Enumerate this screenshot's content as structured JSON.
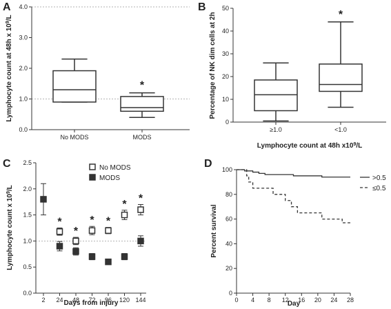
{
  "chart_data": [
    {
      "panel": "A",
      "type": "box",
      "ylabel": "Lymphocyte count at 48h x 10",
      "ylabel_sup": "9",
      "ylabel_suffix": "/L",
      "xlabel": "",
      "ylim": [
        0,
        4
      ],
      "yticks": [
        "0.0",
        "1.0",
        "2.0",
        "3.0",
        "4.0"
      ],
      "yticks_values": [
        0,
        1,
        2,
        3,
        4
      ],
      "dotted_lines": [
        1,
        4
      ],
      "categories": [
        "No MODS",
        "MODS"
      ],
      "boxes": [
        {
          "min": 0.9,
          "q1": 0.9,
          "median": 1.3,
          "q3": 1.92,
          "max": 2.3
        },
        {
          "min": 0.4,
          "q1": 0.6,
          "median": 0.72,
          "q3": 1.08,
          "max": 1.2
        }
      ],
      "significance": [
        false,
        true
      ],
      "star": "*"
    },
    {
      "panel": "B",
      "type": "box",
      "ylabel": "Percentage of NK dim cells at 2h",
      "xlabel": "Lymphocyte count at 48h x10",
      "xlabel_sup": "9",
      "xlabel_suffix": "/L",
      "ylim": [
        0,
        50
      ],
      "yticks": [
        "0",
        "10",
        "20",
        "30",
        "40",
        "50"
      ],
      "yticks_values": [
        0,
        10,
        20,
        30,
        40,
        50
      ],
      "categories": [
        "≥1.0",
        "<1.0"
      ],
      "boxes": [
        {
          "min": 0.5,
          "q1": 5,
          "median": 12,
          "q3": 18.5,
          "max": 26
        },
        {
          "min": 6.5,
          "q1": 13.5,
          "median": 16.5,
          "q3": 25.5,
          "max": 44
        }
      ],
      "significance": [
        false,
        true
      ],
      "star": "*"
    },
    {
      "panel": "C",
      "type": "scatter",
      "ylabel": "Lymphocyte count x 10",
      "ylabel_sup": "9",
      "ylabel_suffix": "/L",
      "xlabel": "Days from injury",
      "categories": [
        "2",
        "24",
        "48",
        "72",
        "96",
        "120",
        "144"
      ],
      "ylim": [
        0,
        2.5
      ],
      "yticks": [
        "0.0",
        "0.5",
        "1.0",
        "1.5",
        "2.0",
        "2.5"
      ],
      "yticks_values": [
        0,
        0.5,
        1,
        1.5,
        2,
        2.5
      ],
      "dotted_lines": [
        1
      ],
      "series": [
        {
          "name": "No MODS",
          "marker": "open-square",
          "values": [
            null,
            1.18,
            1.0,
            1.2,
            1.2,
            1.5,
            1.6
          ],
          "err": [
            null,
            0.07,
            0.07,
            0.08,
            0.06,
            0.09,
            0.1
          ]
        },
        {
          "name": "MODS",
          "marker": "filled-square",
          "values": [
            1.8,
            0.9,
            0.8,
            0.7,
            0.6,
            0.7,
            1.0
          ],
          "err": [
            0.3,
            0.09,
            0.07,
            0.06,
            0.05,
            0.06,
            0.1
          ]
        }
      ],
      "significance": [
        false,
        true,
        true,
        true,
        true,
        true,
        true
      ],
      "star": "*",
      "legend": "top-right"
    },
    {
      "panel": "D",
      "type": "line",
      "ylabel": "Percent survival",
      "xlabel": "Day",
      "xlim": [
        0,
        28
      ],
      "xticks": [
        "0",
        "4",
        "8",
        "12",
        "16",
        "20",
        "24",
        "28"
      ],
      "xticks_values": [
        0,
        4,
        8,
        12,
        16,
        20,
        24,
        28
      ],
      "ylim": [
        0,
        100
      ],
      "yticks": [
        "0",
        "20",
        "40",
        "60",
        "80",
        "100"
      ],
      "yticks_values": [
        0,
        20,
        40,
        60,
        80,
        100
      ],
      "series": [
        {
          "name": ">0.5",
          "dash": "solid",
          "points": [
            [
              0,
              100
            ],
            [
              2,
              100
            ],
            [
              2,
              99
            ],
            [
              4,
              99
            ],
            [
              4,
              98
            ],
            [
              5.5,
              98
            ],
            [
              5.5,
              97
            ],
            [
              7,
              97
            ],
            [
              7,
              96
            ],
            [
              14,
              96
            ],
            [
              14,
              95
            ],
            [
              21,
              95
            ],
            [
              21,
              94
            ],
            [
              28,
              94
            ]
          ]
        },
        {
          "name": "≤0.5",
          "dash": "dashed",
          "points": [
            [
              0,
              100
            ],
            [
              2.5,
              100
            ],
            [
              2.5,
              95
            ],
            [
              3,
              95
            ],
            [
              3,
              90
            ],
            [
              4,
              90
            ],
            [
              4,
              85
            ],
            [
              9,
              85
            ],
            [
              9,
              80
            ],
            [
              12,
              80
            ],
            [
              12,
              75
            ],
            [
              13.5,
              75
            ],
            [
              13.5,
              70
            ],
            [
              15,
              70
            ],
            [
              15,
              65
            ],
            [
              21,
              65
            ],
            [
              21,
              60
            ],
            [
              26,
              60
            ],
            [
              26,
              57
            ],
            [
              28,
              57
            ]
          ]
        }
      ],
      "legend": "top-right"
    }
  ]
}
